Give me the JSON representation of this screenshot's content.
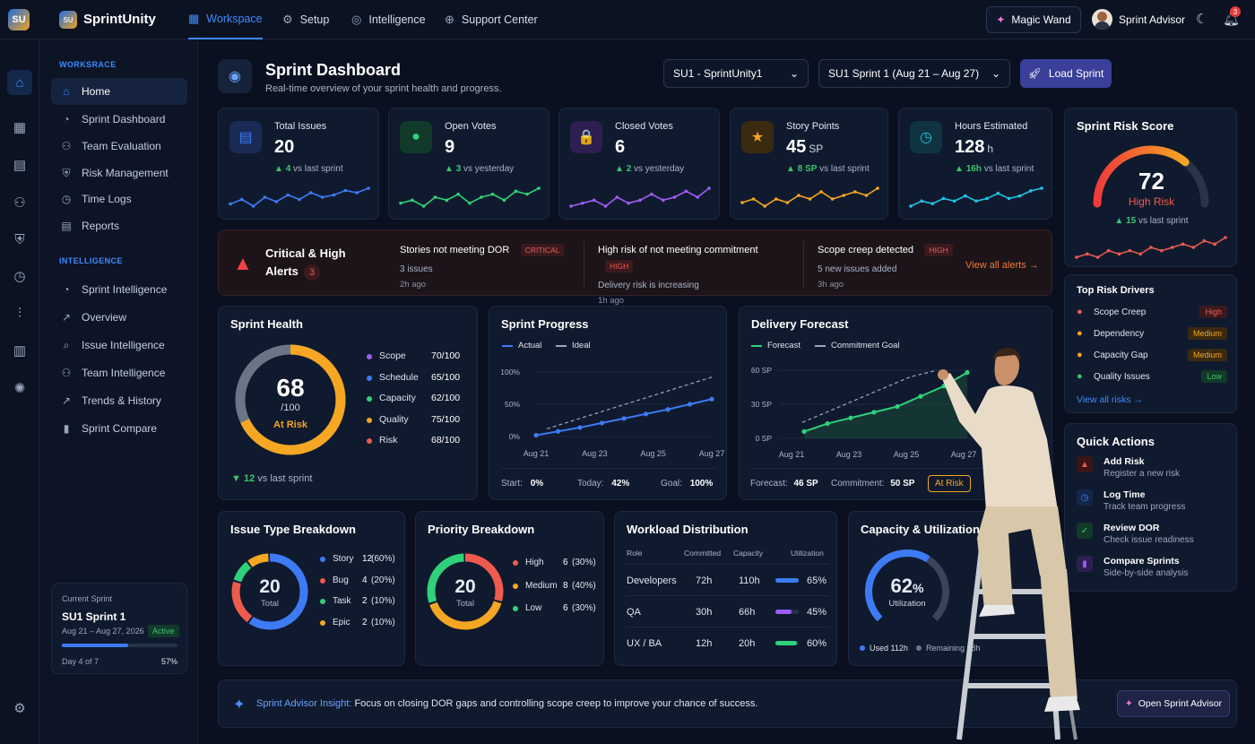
{
  "brand": {
    "logo": "SU",
    "name": "SprintUnity"
  },
  "topnav": [
    {
      "label": "Workspace",
      "icon": "grid-icon"
    },
    {
      "label": "Setup",
      "icon": "gear-icon"
    },
    {
      "label": "Intelligence",
      "icon": "bulb-icon"
    },
    {
      "label": "Support Center",
      "icon": "globe-icon"
    }
  ],
  "magic_wand": "Magic Wand",
  "user": {
    "name": "Sprint Advisor"
  },
  "notifications": "3",
  "sidebar": {
    "section1": "WORKSRACE",
    "items1": [
      "Home",
      "Sprint Dashboard",
      "Team Evaluation",
      "Risk Management",
      "Time Logs",
      "Reports"
    ],
    "section2": "INTELLIGENCE",
    "items2": [
      "Sprint Intelligence",
      "Overview",
      "Issue Intelligence",
      "Team Intelligence",
      "Trends & History",
      "Sprint Compare"
    ],
    "current": {
      "label": "Current Sprint",
      "name": "SU1 Sprint 1",
      "dates": "Aug 21 – Aug 27, 2026",
      "status": "Active",
      "day": "Day 4 of 7",
      "pct": "57%",
      "progress": 0.57
    }
  },
  "header": {
    "title": "Sprint Dashboard",
    "subtitle": "Real-time overview of your sprint health and progress.",
    "project": "SU1 - SprintUnity1",
    "sprint": "SU1 Sprint 1 (Aug 21 – Aug 27)",
    "load": "Load Sprint"
  },
  "kpis": [
    {
      "label": "Total Issues",
      "value": "20",
      "unit": "",
      "delta": "4",
      "delta_text": "vs last sprint",
      "color": "#3d7bf5",
      "bg": "#1a2a55",
      "icon": "document-icon",
      "glyph": "▤",
      "spark": [
        3,
        5,
        2,
        6,
        4,
        7,
        5,
        8,
        6,
        7,
        9,
        8,
        10
      ]
    },
    {
      "label": "Open Votes",
      "value": "9",
      "unit": "",
      "delta": "3",
      "delta_text": "vs yesterday",
      "color": "#2fd17a",
      "bg": "#123a2a",
      "icon": "chat-icon",
      "glyph": "●",
      "spark": [
        4,
        5,
        3,
        6,
        5,
        7,
        4,
        6,
        7,
        5,
        8,
        7,
        9
      ]
    },
    {
      "label": "Closed Votes",
      "value": "6",
      "unit": "",
      "delta": "2",
      "delta_text": "vs yesterday",
      "color": "#a15cf5",
      "bg": "#2d1f50",
      "icon": "lock-icon",
      "glyph": "🔒",
      "spark": [
        3,
        4,
        5,
        3,
        6,
        4,
        5,
        7,
        5,
        6,
        8,
        6,
        9
      ]
    },
    {
      "label": "Story Points",
      "value": "45",
      "unit": "SP",
      "delta": "8 SP",
      "delta_text": "vs last sprint",
      "color": "#f5a623",
      "bg": "#3a2a10",
      "icon": "star-icon",
      "glyph": "★",
      "spark": [
        4,
        5,
        3,
        5,
        4,
        6,
        5,
        7,
        5,
        6,
        7,
        6,
        8
      ]
    },
    {
      "label": "Hours Estimated",
      "value": "128",
      "unit": "h",
      "delta": "16h",
      "delta_text": "vs last sprint",
      "color": "#22c3e6",
      "bg": "#0f3440",
      "icon": "timer-icon",
      "glyph": "◷",
      "spark": [
        3,
        5,
        4,
        6,
        5,
        7,
        5,
        6,
        8,
        6,
        7,
        9,
        10
      ]
    }
  ],
  "risk_score": {
    "title": "Sprint Risk Score",
    "value": "72",
    "label": "High Risk",
    "delta": "15",
    "delta_text": "vs last sprint",
    "fraction": 0.72,
    "spark": [
      3,
      4,
      3,
      5,
      4,
      5,
      4,
      6,
      5,
      6,
      7,
      6,
      8,
      7,
      9
    ]
  },
  "alerts": {
    "title1": "Critical & High",
    "title2": "Alerts",
    "count": "3",
    "view_all": "View all alerts",
    "items": [
      {
        "title": "Stories not meeting DOR",
        "sev": "CRITICAL",
        "detail": "3 issues",
        "time": "2h ago"
      },
      {
        "title": "High risk of not meeting commitment",
        "sev": "HIGH",
        "detail": "Delivery risk is increasing",
        "time": "1h ago"
      },
      {
        "title": "Scope creep detected",
        "sev": "HIGH",
        "detail": "5 new issues added",
        "time": "3h ago"
      }
    ]
  },
  "drivers": {
    "title": "Top Risk Drivers",
    "view_all": "View all risks",
    "items": [
      {
        "name": "Scope Creep",
        "level": "High",
        "icon": "target-icon",
        "color": "#ef5a4f"
      },
      {
        "name": "Dependency",
        "level": "Medium",
        "icon": "link-icon",
        "color": "#f5a623"
      },
      {
        "name": "Capacity Gap",
        "level": "Medium",
        "icon": "alert-icon",
        "color": "#f5a623"
      },
      {
        "name": "Quality Issues",
        "level": "Low",
        "icon": "shield-icon",
        "color": "#3ec46d"
      }
    ]
  },
  "health": {
    "title": "Sprint Health",
    "value": "68",
    "max": "/100",
    "status": "At Risk",
    "delta": "12",
    "delta_text": "vs last sprint",
    "fraction": 0.68,
    "items": [
      {
        "name": "Scope",
        "val": "70/100",
        "color": "#a15cf5"
      },
      {
        "name": "Schedule",
        "val": "65/100",
        "color": "#3d7bf5"
      },
      {
        "name": "Capacity",
        "val": "62/100",
        "color": "#2fd17a"
      },
      {
        "name": "Quality",
        "val": "75/100",
        "color": "#f5a623"
      },
      {
        "name": "Risk",
        "val": "68/100",
        "color": "#ef5a4f"
      }
    ]
  },
  "progress": {
    "title": "Sprint Progress",
    "legend_actual": "Actual",
    "legend_ideal": "Ideal",
    "y_labels": [
      "100%",
      "50%",
      "0%"
    ],
    "x_labels": [
      "Aug 21",
      "Aug 23",
      "Aug 25",
      "Aug 27"
    ],
    "actual": [
      0.02,
      0.08,
      0.14,
      0.21,
      0.28,
      0.35,
      0.42,
      0.5,
      0.58
    ],
    "ideal": [
      0.12,
      0.32,
      0.52,
      0.72,
      0.92
    ],
    "start_label": "Start:",
    "start": "0%",
    "today_label": "Today:",
    "today": "42%",
    "goal_label": "Goal:",
    "goal": "100%"
  },
  "forecast": {
    "title": "Delivery Forecast",
    "legend_forecast": "Forecast",
    "legend_goal": "Commitment Goal",
    "y_labels": [
      "60 SP",
      "30 SP",
      "0 SP"
    ],
    "x_labels": [
      "Aug 21",
      "Aug 23",
      "Aug 25",
      "Aug 27"
    ],
    "forecast": [
      6,
      13,
      18,
      23,
      28,
      37,
      46,
      58
    ],
    "goal": [
      14,
      24,
      34,
      44,
      54,
      60
    ],
    "forecast_label": "Forecast:",
    "forecast_val": "46 SP",
    "commit_label": "Commitment:",
    "commit_val": "50 SP",
    "status": "At Risk"
  },
  "issue_type": {
    "title": "Issue Type Breakdown",
    "total": "20",
    "total_label": "Total",
    "items": [
      {
        "name": "Story",
        "val": "12",
        "pct": "(60%)",
        "color": "#3d7bf5",
        "frac": 0.6
      },
      {
        "name": "Bug",
        "val": "4",
        "pct": "(20%)",
        "color": "#ef5a4f",
        "frac": 0.2
      },
      {
        "name": "Task",
        "val": "2",
        "pct": "(10%)",
        "color": "#2fd17a",
        "frac": 0.1
      },
      {
        "name": "Epic",
        "val": "2",
        "pct": "(10%)",
        "color": "#f5a623",
        "frac": 0.1
      }
    ]
  },
  "priority": {
    "title": "Priority Breakdown",
    "total": "20",
    "total_label": "Total",
    "items": [
      {
        "name": "High",
        "val": "6",
        "pct": "(30%)",
        "color": "#ef5a4f",
        "frac": 0.3
      },
      {
        "name": "Medium",
        "val": "8",
        "pct": "(40%)",
        "color": "#f5a623",
        "frac": 0.4
      },
      {
        "name": "Low",
        "val": "6",
        "pct": "(30%)",
        "color": "#2fd17a",
        "frac": 0.3
      }
    ]
  },
  "workload": {
    "title": "Workload Distribution",
    "headers": [
      "Role",
      "Committed",
      "Capacity",
      "Utilization"
    ],
    "rows": [
      {
        "role": "Developers",
        "committed": "72h",
        "capacity": "110h",
        "util": "65%",
        "frac": 0.65,
        "color": "#3d7bf5"
      },
      {
        "role": "QA",
        "committed": "30h",
        "capacity": "66h",
        "util": "45%",
        "frac": 0.45,
        "color": "#a15cf5"
      },
      {
        "role": "UX / BA",
        "committed": "12h",
        "capacity": "20h",
        "util": "60%",
        "frac": 0.6,
        "color": "#2fd17a"
      }
    ]
  },
  "capacity": {
    "title": "Capacity & Utilization",
    "value": "62",
    "unit": "%",
    "label": "Utilization",
    "fraction": 0.62,
    "used": "Used 112h",
    "remaining": "Remaining 68h"
  },
  "quick": {
    "title": "Quick Actions",
    "items": [
      {
        "t": "Add Risk",
        "s": "Register a new risk",
        "color": "#ef5a4f",
        "bg": "#3a1618",
        "icon": "warning-icon",
        "glyph": "▲"
      },
      {
        "t": "Log Time",
        "s": "Track team progress",
        "color": "#3d8bff",
        "bg": "#13264a",
        "icon": "clock-icon",
        "glyph": "◷"
      },
      {
        "t": "Review DOR",
        "s": "Check issue readiness",
        "color": "#2fd17a",
        "bg": "#123a2a",
        "icon": "checklist-icon",
        "glyph": "✓"
      },
      {
        "t": "Compare Sprints",
        "s": "Side-by-side analysis",
        "color": "#a15cf5",
        "bg": "#2d1f50",
        "icon": "bars-icon",
        "glyph": "▮"
      }
    ]
  },
  "insight": {
    "label": "Sprint Advisor Insight:",
    "text": "Focus on closing DOR gaps and controlling scope creep to improve your chance of success.",
    "button": "Open Sprint Advisor"
  }
}
